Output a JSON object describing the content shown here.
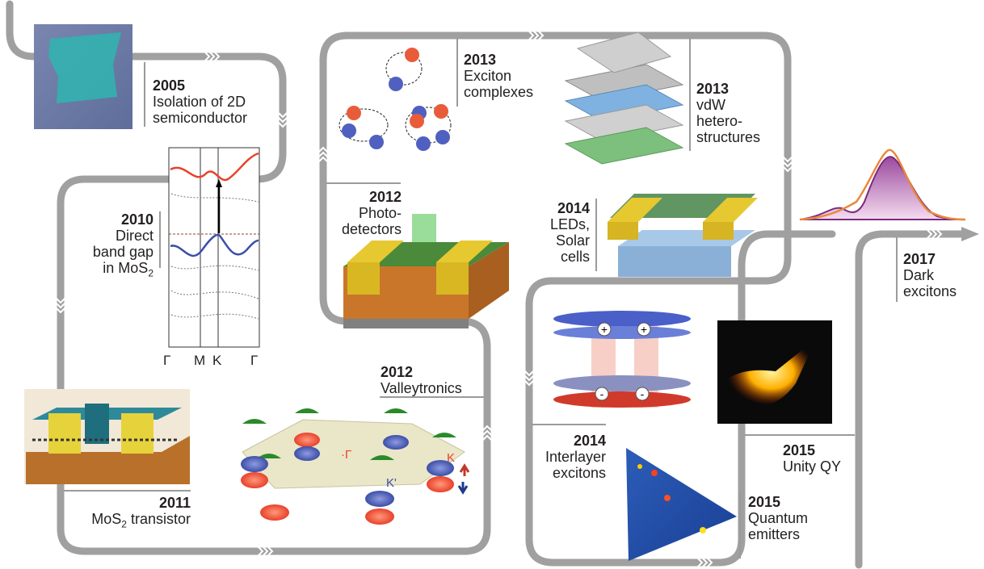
{
  "milestones": {
    "m2005": {
      "year": "2005",
      "text": "Isolation of 2D\nsemiconductor"
    },
    "m2010": {
      "year": "2010",
      "line1": "Direct",
      "line2": "band gap",
      "line3_pre": "in MoS",
      "line3_sub": "2"
    },
    "m2011": {
      "year": "2011",
      "pre": "MoS",
      "sub": "2",
      "post": " transistor"
    },
    "m2012a": {
      "year": "2012",
      "text": "Photo-\ndetectors"
    },
    "m2012b": {
      "year": "2012",
      "text": "Valleytronics"
    },
    "m2013a": {
      "year": "2013",
      "text": "Exciton\ncomplexes"
    },
    "m2013b": {
      "year": "2013",
      "text": "vdW\nhetero-\nstructures"
    },
    "m2014a": {
      "year": "2014",
      "text": "LEDs,\nSolar\ncells"
    },
    "m2014b": {
      "year": "2014",
      "text": "Interlayer\nexcitons"
    },
    "m2015a": {
      "year": "2015",
      "text": "Unity QY"
    },
    "m2015b": {
      "year": "2015",
      "text": "Quantum\nemitters"
    },
    "m2017": {
      "year": "2017",
      "text": "Dark\nexcitons"
    }
  },
  "band_axis": {
    "ticks": [
      "Γ",
      "M",
      "K",
      "Γ"
    ]
  },
  "valley_labels": {
    "gamma": "·Γ",
    "k": "K",
    "kprime": "K'"
  },
  "interlayer_signs": {
    "plus": "+",
    "minus": "-"
  },
  "colors": {
    "path": "#9b9b9b",
    "red": "#e8412c",
    "blue": "#3b4fa8",
    "gold": "#f2c12e",
    "purple": "#8b3a8f",
    "orange": "#e8893a",
    "green": "#3a8c3a"
  }
}
